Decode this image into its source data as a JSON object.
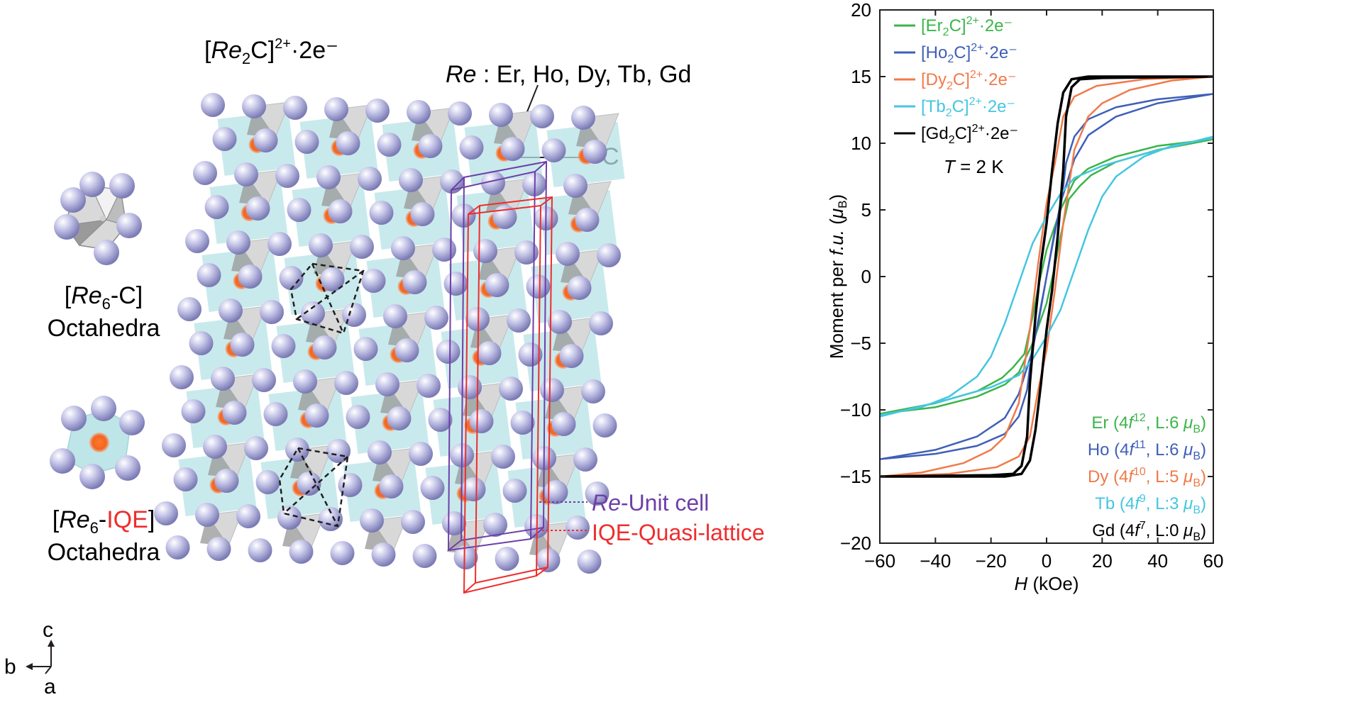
{
  "structure": {
    "formula": {
      "prefix": "[",
      "re": "Re",
      "sub": "2",
      "tail": "C]",
      "charge": "2+",
      "electrons": "·2e⁻"
    },
    "re_list": {
      "re": "Re",
      "text": " : Er, Ho, Dy, Tb, Gd"
    },
    "carbon": "C",
    "oct_c": {
      "open": "[",
      "re": "Re",
      "sub": "6",
      "tail": "-C]",
      "line2": "Octahedra"
    },
    "oct_iqe": {
      "open": "[",
      "re": "Re",
      "sub": "6",
      "dash": "-",
      "iqe": "IQE",
      "close": "]",
      "line2": "Octahedra"
    },
    "unit_cell": {
      "re": "Re",
      "text": "-Unit cell"
    },
    "quasi": "IQE-Quasi-lattice",
    "axes": {
      "c": "c",
      "b": "b",
      "a": "a"
    },
    "colors": {
      "atom": "#a6a6d8",
      "iqe": "#f26522",
      "octa": "#b7e3e6",
      "cell": "#6f3fa8",
      "quasi": "#ee2d2d"
    }
  },
  "chart_data": {
    "type": "line",
    "xlabel": {
      "var": "H",
      "unit": " (kOe)"
    },
    "ylabel": {
      "pre": "Moment per ",
      "fu": "f.u.",
      "open": " (",
      "mu": "μ",
      "sub": "B",
      "close": ")"
    },
    "xlim": [
      -60,
      60
    ],
    "ylim": [
      -20,
      20
    ],
    "xticks": [
      "−60",
      "−40",
      "−20",
      "0",
      "20",
      "40",
      "60"
    ],
    "yticks": [
      "20",
      "15",
      "10",
      "5",
      "0",
      "−5",
      "−10",
      "−15",
      "−20"
    ],
    "xtick_values": [
      -60,
      -40,
      -20,
      0,
      20,
      40,
      60
    ],
    "ytick_values": [
      20,
      15,
      10,
      5,
      0,
      -5,
      -10,
      -15,
      -20
    ],
    "temperature": {
      "var": "T",
      "text": " = 2 K"
    },
    "legend_position": "top-left",
    "series": [
      {
        "name": "[Er₂C]²⁺·2e⁻",
        "label_pre": "[Er",
        "label_sub": "2",
        "label_post": "C]",
        "label_sup": "2+",
        "label_end": "·2e⁻",
        "info": {
          "el": "Er (4",
          "f": "f",
          "n": "12",
          "rest": ", L:6 ",
          "mu": "μ",
          "sub": "B",
          "close": ")"
        },
        "color": "#3bb54a",
        "loop": [
          [
            -60,
            -10.3
          ],
          [
            -40,
            -9.8
          ],
          [
            -25,
            -9.0
          ],
          [
            -15,
            -8.1
          ],
          [
            -10,
            -7.2
          ],
          [
            -5,
            -5.0
          ],
          [
            0,
            -2.0
          ],
          [
            3,
            0.8
          ],
          [
            5,
            3.0
          ],
          [
            8,
            5.8
          ],
          [
            12,
            6.8
          ],
          [
            16,
            7.6
          ],
          [
            25,
            8.6
          ],
          [
            40,
            9.5
          ],
          [
            60,
            10.3
          ]
        ]
      },
      {
        "name": "[Ho₂C]²⁺·2e⁻",
        "label_pre": "[Ho",
        "label_sub": "2",
        "label_post": "C]",
        "label_sup": "2+",
        "label_end": "·2e⁻",
        "info": {
          "el": "Ho (4",
          "f": "f",
          "n": "11",
          "rest": ", L:6 ",
          "mu": "μ",
          "sub": "B",
          "close": ")"
        },
        "color": "#3f5fb8",
        "loop": [
          [
            -60,
            -13.7
          ],
          [
            -40,
            -13.0
          ],
          [
            -25,
            -12.0
          ],
          [
            -15,
            -10.6
          ],
          [
            -10,
            -8.8
          ],
          [
            -5,
            -5.5
          ],
          [
            0,
            0.0
          ],
          [
            3,
            3.5
          ],
          [
            5,
            5.0
          ],
          [
            7,
            8.5
          ],
          [
            10,
            10.5
          ],
          [
            15,
            11.8
          ],
          [
            25,
            12.7
          ],
          [
            40,
            13.3
          ],
          [
            60,
            13.7
          ]
        ]
      },
      {
        "name": "[Dy₂C]²⁺·2e⁻",
        "label_pre": "[Dy",
        "label_sub": "2",
        "label_post": "C]",
        "label_sup": "2+",
        "label_end": "·2e⁻",
        "info": {
          "el": "Dy (4",
          "f": "f",
          "n": "10",
          "rest": ", L:5 ",
          "mu": "μ",
          "sub": "B",
          "close": ")"
        },
        "color": "#f07a4a",
        "loop": [
          [
            -60,
            -15.0
          ],
          [
            -45,
            -14.7
          ],
          [
            -30,
            -14.0
          ],
          [
            -20,
            -13.0
          ],
          [
            -15,
            -12.0
          ],
          [
            -10,
            -9.5
          ],
          [
            -6,
            -4.0
          ],
          [
            -3,
            1.0
          ],
          [
            0,
            5.5
          ],
          [
            3,
            8.5
          ],
          [
            6,
            12.0
          ],
          [
            10,
            13.5
          ],
          [
            18,
            14.3
          ],
          [
            35,
            14.8
          ],
          [
            60,
            15.0
          ]
        ]
      },
      {
        "name": "[Tb₂C]²⁺·2e⁻",
        "label_pre": "[Tb",
        "label_sub": "2",
        "label_post": "C]",
        "label_sup": "2+",
        "label_end": "·2e⁻",
        "info": {
          "el": "Tb (4",
          "f": "f",
          "n": "9",
          "rest": ", L:3 ",
          "mu": "μ",
          "sub": "B",
          "close": ")"
        },
        "color": "#45c6e0",
        "loop": [
          [
            -60,
            -10.4
          ],
          [
            -45,
            -9.8
          ],
          [
            -35,
            -9.0
          ],
          [
            -25,
            -7.5
          ],
          [
            -20,
            -6.0
          ],
          [
            -15,
            -3.5
          ],
          [
            -10,
            -0.5
          ],
          [
            -5,
            2.5
          ],
          [
            0,
            4.5
          ],
          [
            5,
            6.2
          ],
          [
            10,
            7.4
          ],
          [
            20,
            8.3
          ],
          [
            35,
            9.2
          ],
          [
            60,
            10.5
          ]
        ]
      },
      {
        "name": "[Gd₂C]²⁺·2e⁻",
        "label_pre": "[Gd",
        "label_sub": "2",
        "label_post": "C]",
        "label_sup": "2+",
        "label_end": "·2e⁻",
        "info": {
          "el": "Gd (4",
          "f": "f",
          "n": "7",
          "rest": ", L:0 ",
          "mu": "μ",
          "sub": "B",
          "close": ")"
        },
        "color": "#000000",
        "loop": [
          [
            -60,
            -15.0
          ],
          [
            -20,
            -14.9
          ],
          [
            -12,
            -14.8
          ],
          [
            -9,
            -14.2
          ],
          [
            -7,
            -12.0
          ],
          [
            -6,
            -8.0
          ],
          [
            -4,
            -3.0
          ],
          [
            -2,
            1.0
          ],
          [
            0,
            4.0
          ],
          [
            2,
            8.0
          ],
          [
            4,
            11.5
          ],
          [
            6,
            13.8
          ],
          [
            9,
            14.8
          ],
          [
            15,
            15.0
          ],
          [
            60,
            15.0
          ]
        ]
      }
    ]
  }
}
